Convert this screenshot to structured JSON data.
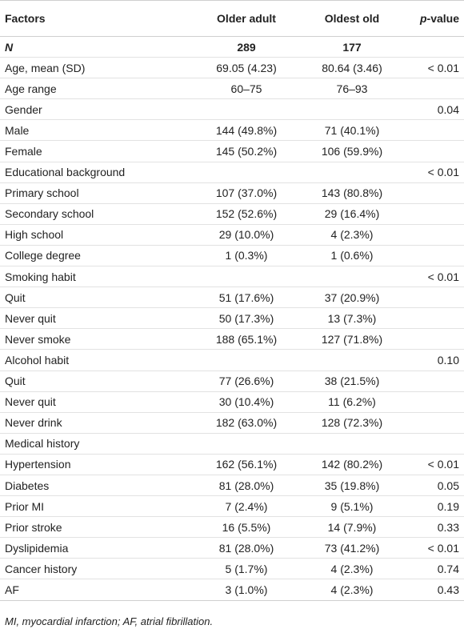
{
  "table": {
    "header": [
      "Factors",
      "Older adult",
      "Oldest old"
    ],
    "pvalue_header": {
      "italic": "p",
      "rest": "-value"
    },
    "emphasis_rows": [
      0
    ],
    "rows": [
      [
        "N",
        "289",
        "177",
        null
      ],
      [
        "Age, mean (SD)",
        "69.05 (4.23)",
        "80.64 (3.46)",
        "< 0.01"
      ],
      [
        "Age range",
        "60–75",
        "76–93",
        null
      ],
      [
        "Gender",
        null,
        null,
        "0.04"
      ],
      [
        "Male",
        "144 (49.8%)",
        "71 (40.1%)",
        null
      ],
      [
        "Female",
        "145 (50.2%)",
        "106 (59.9%)",
        null
      ],
      [
        "Educational background",
        null,
        null,
        "< 0.01"
      ],
      [
        "Primary school",
        "107 (37.0%)",
        "143 (80.8%)",
        null
      ],
      [
        "Secondary school",
        "152 (52.6%)",
        "29 (16.4%)",
        null
      ],
      [
        "High school",
        "29 (10.0%)",
        "4 (2.3%)",
        null
      ],
      [
        "College degree",
        "1 (0.3%)",
        "1 (0.6%)",
        null
      ],
      [
        "Smoking habit",
        null,
        null,
        "< 0.01"
      ],
      [
        "Quit",
        "51 (17.6%)",
        "37 (20.9%)",
        null
      ],
      [
        "Never quit",
        "50 (17.3%)",
        "13 (7.3%)",
        null
      ],
      [
        "Never smoke",
        "188 (65.1%)",
        "127 (71.8%)",
        null
      ],
      [
        "Alcohol habit",
        null,
        null,
        "0.10"
      ],
      [
        "Quit",
        "77 (26.6%)",
        "38 (21.5%)",
        null
      ],
      [
        "Never quit",
        "30 (10.4%)",
        "11 (6.2%)",
        null
      ],
      [
        "Never drink",
        "182 (63.0%)",
        "128 (72.3%)",
        null
      ],
      [
        "Medical history",
        null,
        null,
        null
      ],
      [
        "Hypertension",
        "162 (56.1%)",
        "142 (80.2%)",
        "< 0.01"
      ],
      [
        "Diabetes",
        "81 (28.0%)",
        "35 (19.8%)",
        "0.05"
      ],
      [
        "Prior MI",
        "7 (2.4%)",
        "9 (5.1%)",
        "0.19"
      ],
      [
        "Prior stroke",
        "16 (5.5%)",
        "14 (7.9%)",
        "0.33"
      ],
      [
        "Dyslipidemia",
        "81 (28.0%)",
        "73 (41.2%)",
        "< 0.01"
      ],
      [
        "Cancer history",
        "5 (1.7%)",
        "4 (2.3%)",
        "0.74"
      ],
      [
        "AF",
        "3 (1.0%)",
        "4 (2.3%)",
        "0.43"
      ]
    ],
    "footnote": "MI, myocardial infarction; AF, atrial fibrillation."
  }
}
